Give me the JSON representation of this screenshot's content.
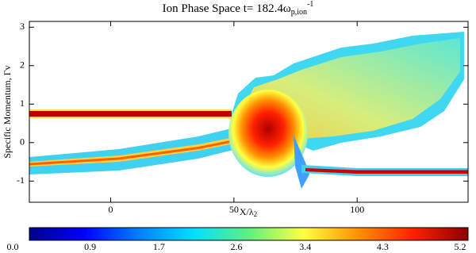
{
  "chart_data": {
    "type": "heatmap",
    "title": "Ion Phase Space t= 182.4ω",
    "title_subscript": "p,ion",
    "title_superscript": "-1",
    "x_label": "X/λ",
    "x_label_subscript": "2",
    "y_label": "Specific Momentum, Γv",
    "xlim": [
      -33,
      145
    ],
    "ylim": [
      -1.55,
      3.15
    ],
    "xticks": [
      0,
      50,
      100
    ],
    "yticks": [
      -1,
      0,
      1,
      2,
      3
    ],
    "colorbar": {
      "lim": [
        0,
        5.2
      ],
      "ticks": [
        {
          "value": 0,
          "label": "0.0"
        },
        0.9,
        1.7,
        2.6,
        3.4,
        4.3,
        5.2
      ],
      "colormap": [
        "#00008b",
        "#0000ff",
        "#0080ff",
        "#00e0ff",
        "#60f080",
        "#ffff40",
        "#ff9000",
        "#ff2000",
        "#8b0000"
      ]
    }
  }
}
